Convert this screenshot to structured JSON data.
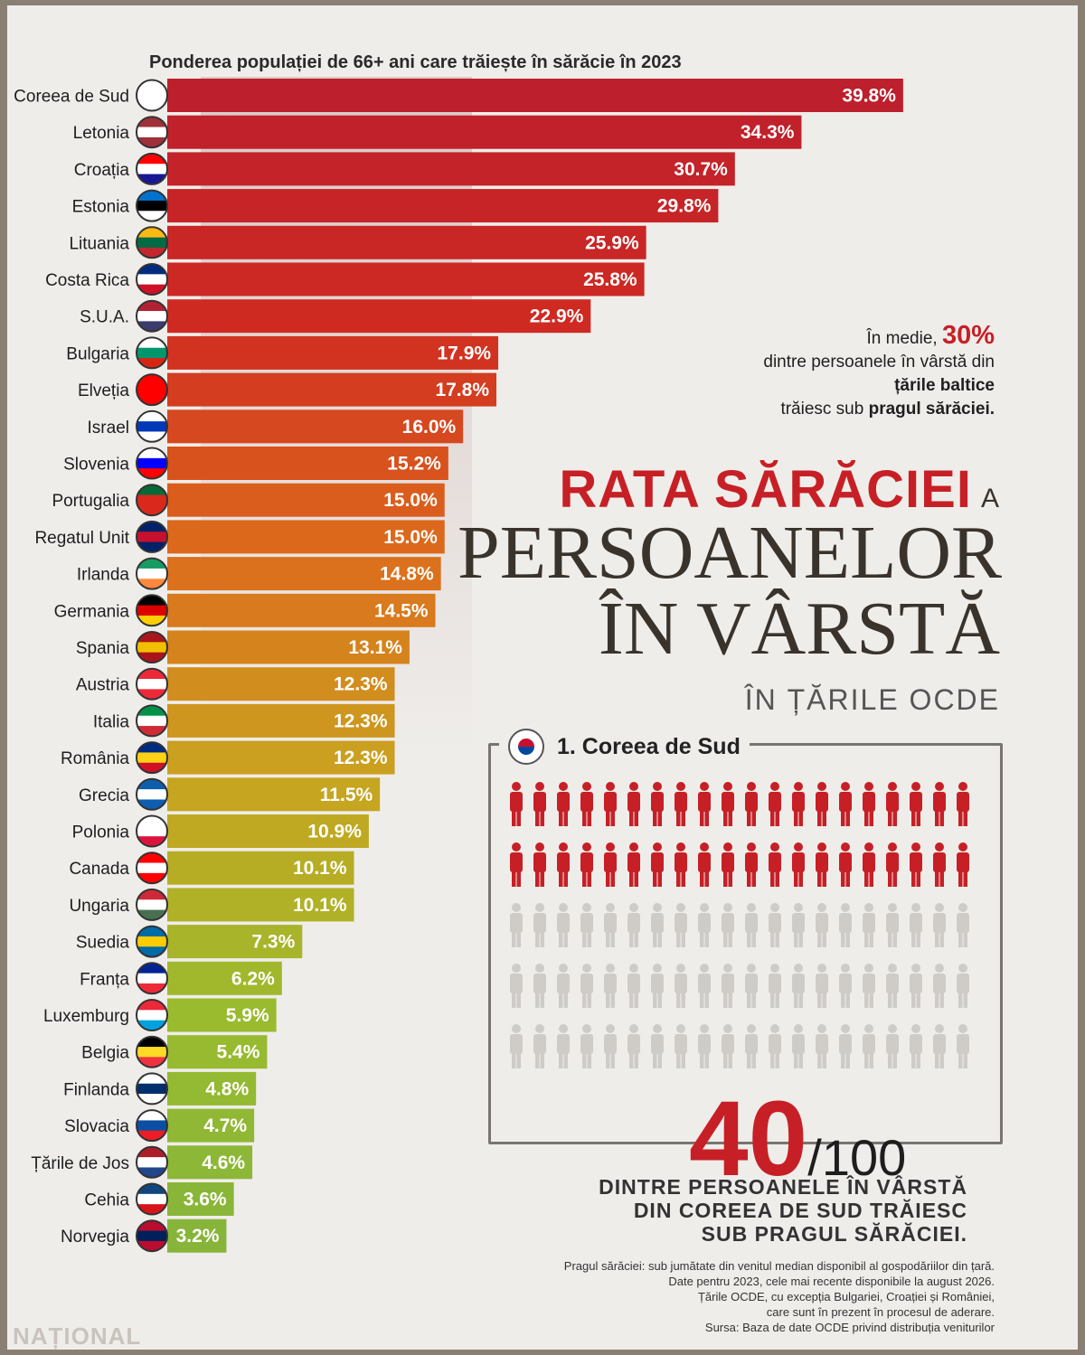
{
  "chart_data": {
    "type": "bar",
    "orientation": "horizontal",
    "title": "Ponderea populației de 66+ ani care trăiește în sărăcie în 2023",
    "categories": [
      "Coreea de Sud",
      "Letonia",
      "Croația",
      "Estonia",
      "Lituania",
      "Costa Rica",
      "S.U.A.",
      "Bulgaria",
      "Elveția",
      "Israel",
      "Slovenia",
      "Portugalia",
      "Regatul Unit",
      "Irlanda",
      "Germania",
      "Spania",
      "Austria",
      "Italia",
      "România",
      "Grecia",
      "Polonia",
      "Canada",
      "Ungaria",
      "Suedia",
      "Franța",
      "Luxemburg",
      "Belgia",
      "Finlanda",
      "Slovacia",
      "Țările de Jos",
      "Cehia",
      "Norvegia"
    ],
    "values": [
      39.8,
      34.3,
      30.7,
      29.8,
      25.9,
      25.8,
      22.9,
      17.9,
      17.8,
      16.0,
      15.2,
      15.0,
      15.0,
      14.8,
      14.5,
      13.1,
      12.3,
      12.3,
      12.3,
      11.5,
      10.9,
      10.1,
      10.1,
      7.3,
      6.2,
      5.9,
      5.4,
      4.8,
      4.7,
      4.6,
      3.6,
      3.2
    ],
    "value_labels": [
      "39.8%",
      "34.3%",
      "30.7%",
      "29.8%",
      "25.9%",
      "25.8%",
      "22.9%",
      "17.9%",
      "17.8%",
      "16.0%",
      "15.2%",
      "15.0%",
      "15.0%",
      "14.8%",
      "14.5%",
      "13.1%",
      "12.3%",
      "12.3%",
      "12.3%",
      "11.5%",
      "10.9%",
      "10.1%",
      "10.1%",
      "7.3%",
      "6.2%",
      "5.9%",
      "5.4%",
      "4.8%",
      "4.7%",
      "4.6%",
      "3.6%",
      "3.2%"
    ],
    "flags": [
      [
        "#ffffff",
        "#ffffff",
        "#ffffff"
      ],
      [
        "#9e3039",
        "#ffffff",
        "#9e3039"
      ],
      [
        "#ff0000",
        "#ffffff",
        "#171796"
      ],
      [
        "#0072ce",
        "#000000",
        "#ffffff"
      ],
      [
        "#fdb913",
        "#006a44",
        "#c1272d"
      ],
      [
        "#002b7f",
        "#ffffff",
        "#ce1126"
      ],
      [
        "#b22234",
        "#ffffff",
        "#3c3b6e"
      ],
      [
        "#ffffff",
        "#00966e",
        "#d62612"
      ],
      [
        "#ff0000",
        "#ff0000",
        "#ff0000"
      ],
      [
        "#ffffff",
        "#0038b8",
        "#ffffff"
      ],
      [
        "#ffffff",
        "#0000ff",
        "#ff0000"
      ],
      [
        "#046a38",
        "#da291c",
        "#da291c"
      ],
      [
        "#012169",
        "#c8102e",
        "#012169"
      ],
      [
        "#169b62",
        "#ffffff",
        "#ff883e"
      ],
      [
        "#000000",
        "#dd0000",
        "#ffce00"
      ],
      [
        "#aa151b",
        "#f1bf00",
        "#aa151b"
      ],
      [
        "#ed2939",
        "#ffffff",
        "#ed2939"
      ],
      [
        "#009246",
        "#ffffff",
        "#ce2b37"
      ],
      [
        "#002b7f",
        "#fcd116",
        "#ce1126"
      ],
      [
        "#0d5eaf",
        "#ffffff",
        "#0d5eaf"
      ],
      [
        "#ffffff",
        "#ffffff",
        "#dc143c"
      ],
      [
        "#ff0000",
        "#ffffff",
        "#ff0000"
      ],
      [
        "#ce2939",
        "#ffffff",
        "#477050"
      ],
      [
        "#006aa7",
        "#fecc00",
        "#006aa7"
      ],
      [
        "#002395",
        "#ffffff",
        "#ed2939"
      ],
      [
        "#ed2939",
        "#ffffff",
        "#00a1de"
      ],
      [
        "#000000",
        "#fdda24",
        "#ef3340"
      ],
      [
        "#ffffff",
        "#002f6c",
        "#ffffff"
      ],
      [
        "#ffffff",
        "#0b4ea2",
        "#ee1c25"
      ],
      [
        "#ae1c28",
        "#ffffff",
        "#21468b"
      ],
      [
        "#11457e",
        "#ffffff",
        "#d7141a"
      ],
      [
        "#ba0c2f",
        "#00205b",
        "#ba0c2f"
      ]
    ],
    "xlim": [
      0,
      40
    ],
    "color_gradient": [
      "#bd1f2c",
      "#d02a22",
      "#dd6c1c",
      "#c9a41f",
      "#9bbb2e",
      "#86b53a"
    ]
  },
  "callout": {
    "prefix": "În medie,",
    "pct": "30%",
    "line2": "dintre persoanele în vârstă din",
    "line3": "țările baltice",
    "line4a": "trăiesc sub",
    "line4b": "pragul sărăciei."
  },
  "headline": {
    "l1": "RATA SĂRĂCIEI",
    "l1_small": "A",
    "l2": "PERSOANELOR",
    "l3": "ÎN VÂRSTĂ",
    "l4": "ÎN ȚĂRILE OCDE"
  },
  "pictogram": {
    "title": "1. Coreea de Sud",
    "highlighted": 40,
    "total": 100,
    "colors": {
      "highlight": "#c62026",
      "rest": "#cfccc8"
    }
  },
  "big_stat": {
    "numerator": "40",
    "denominator": "/100",
    "caption_1": "DINTRE PERSOANELE ÎN VÂRSTĂ",
    "caption_2": "DIN COREEA DE SUD TRĂIESC",
    "caption_3": "SUB PRAGUL SĂRĂCIEI."
  },
  "notes": [
    "Pragul sărăciei: sub jumătate din venitul median disponibil al gospodăriilor din țară.",
    "Date pentru 2023, cele mai recente disponibile la august 2026.",
    "Țările OCDE, cu excepția Bulgariei, Croației și României,",
    "care sunt în prezent în procesul de aderare.",
    "Sursa: Baza de date OCDE privind distribuția veniturilor"
  ],
  "logo": "NAȚIONAL"
}
